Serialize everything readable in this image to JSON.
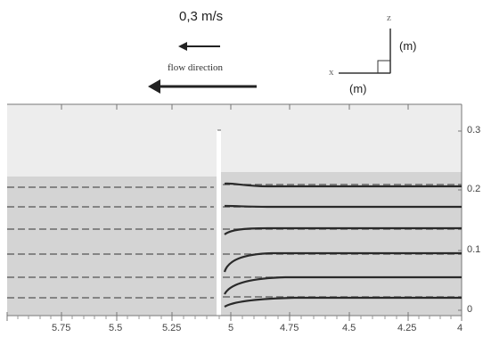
{
  "header": {
    "scale_label": "0,3 m/s",
    "flow_direction_label": "flow direction"
  },
  "axes_glyph": {
    "z_letter": "z",
    "x_letter": "x",
    "z_unit": "(m)",
    "x_unit": "(m)"
  },
  "x_ticks": [
    "5.75",
    "5.5",
    "5.25",
    "5",
    "4.75",
    "4.5",
    "4.25",
    "4"
  ],
  "y_ticks": [
    "0.3",
    "0.2",
    "0.1",
    "0"
  ],
  "colors": {
    "water": "#d4d4d4",
    "air": "#ededed",
    "streamline": "#2a2a2a",
    "probe_line": "#6a6a6a"
  }
}
